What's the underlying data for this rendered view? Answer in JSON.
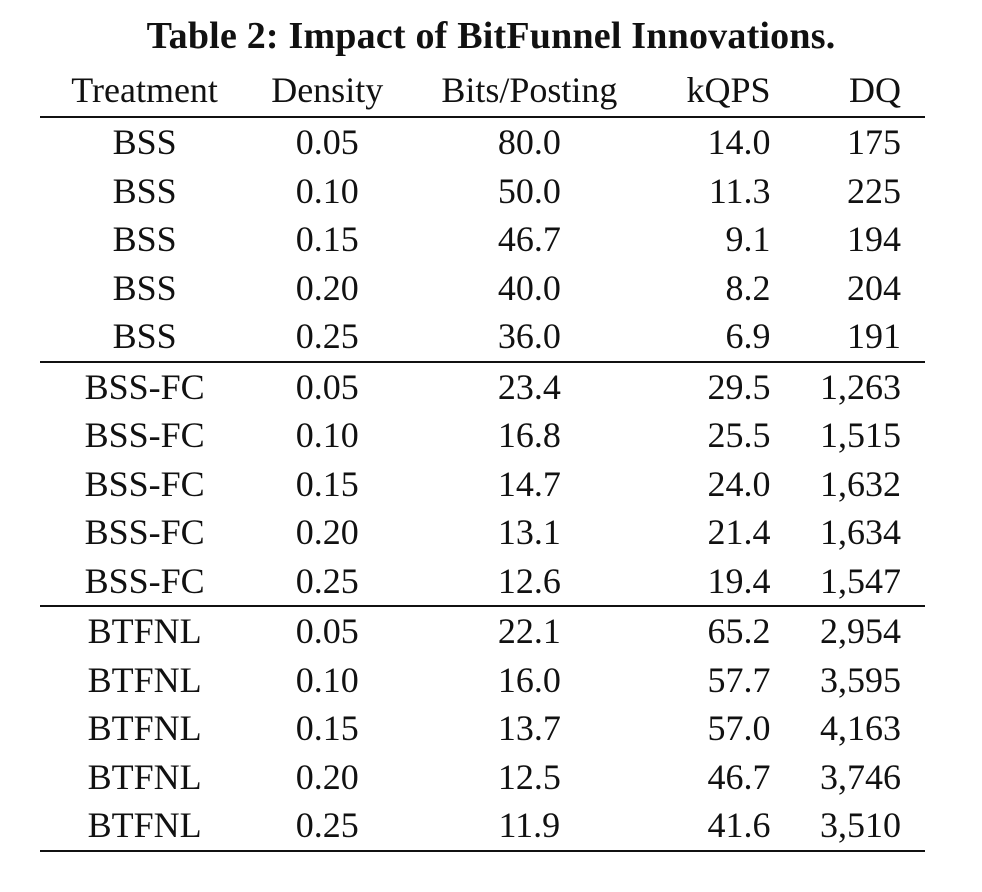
{
  "caption": "Table 2: Impact of BitFunnel Innovations.",
  "columns": [
    "Treatment",
    "Density",
    "Bits/Posting",
    "kQPS",
    "DQ"
  ],
  "groups": [
    {
      "rows": [
        [
          "BSS",
          "0.05",
          "80.0",
          "14.0",
          "175"
        ],
        [
          "BSS",
          "0.10",
          "50.0",
          "11.3",
          "225"
        ],
        [
          "BSS",
          "0.15",
          "46.7",
          "9.1",
          "194"
        ],
        [
          "BSS",
          "0.20",
          "40.0",
          "8.2",
          "204"
        ],
        [
          "BSS",
          "0.25",
          "36.0",
          "6.9",
          "191"
        ]
      ]
    },
    {
      "rows": [
        [
          "BSS-FC",
          "0.05",
          "23.4",
          "29.5",
          "1,263"
        ],
        [
          "BSS-FC",
          "0.10",
          "16.8",
          "25.5",
          "1,515"
        ],
        [
          "BSS-FC",
          "0.15",
          "14.7",
          "24.0",
          "1,632"
        ],
        [
          "BSS-FC",
          "0.20",
          "13.1",
          "21.4",
          "1,634"
        ],
        [
          "BSS-FC",
          "0.25",
          "12.6",
          "19.4",
          "1,547"
        ]
      ]
    },
    {
      "rows": [
        [
          "BTFNL",
          "0.05",
          "22.1",
          "65.2",
          "2,954"
        ],
        [
          "BTFNL",
          "0.10",
          "16.0",
          "57.7",
          "3,595"
        ],
        [
          "BTFNL",
          "0.15",
          "13.7",
          "57.0",
          "4,163"
        ],
        [
          "BTFNL",
          "0.20",
          "12.5",
          "46.7",
          "3,746"
        ],
        [
          "BTFNL",
          "0.25",
          "11.9",
          "41.6",
          "3,510"
        ]
      ]
    }
  ]
}
